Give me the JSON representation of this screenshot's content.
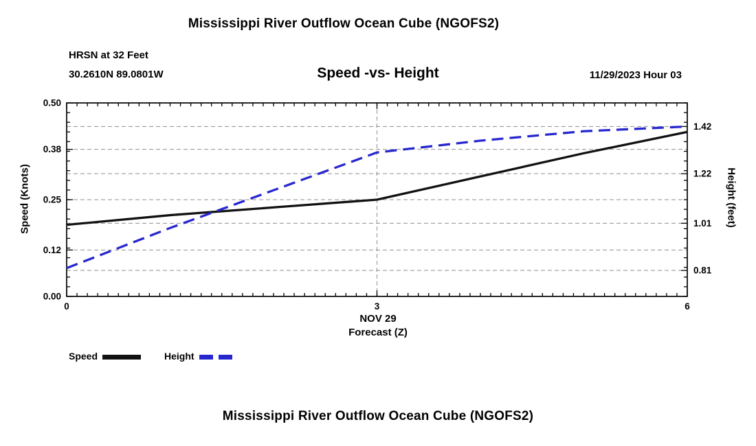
{
  "page": {
    "background": "#ffffff",
    "top_title": "Mississippi River Outflow Ocean Cube (NGOFS2)",
    "bottom_title": "Mississippi River Outflow Ocean Cube (NGOFS2)"
  },
  "header": {
    "station_line": "HRSN at 32 Feet",
    "location_line": "30.2610N  89.0801W",
    "plot_heading": "Speed -vs- Height",
    "forecast_time": "11/29/2023 Hour 03"
  },
  "chart_data": {
    "type": "line",
    "title": "Speed -vs- Height",
    "xlim": [
      0,
      6
    ],
    "x_ticks": {
      "values": [
        0,
        3,
        6
      ],
      "labels": [
        "0",
        "3",
        "6"
      ]
    },
    "x_axis_label_line1": "NOV 29",
    "x_axis_label_line2": "Forecast (Z)",
    "grid": {
      "style": "dashed",
      "color": "#8f8f8f",
      "vertical_lines_at_x": [
        3
      ]
    },
    "left_axis": {
      "label": "Speed (Knots)",
      "ylim": [
        0.0,
        0.5
      ],
      "ticks": [
        0.0,
        0.12,
        0.25,
        0.38,
        0.5
      ],
      "tick_labels": [
        "0.00",
        "0.12",
        "0.25",
        "0.38",
        "0.50"
      ]
    },
    "right_axis": {
      "label": "Height (feet)",
      "ylim": [
        0.7,
        1.52
      ],
      "ticks": [
        0.81,
        1.01,
        1.22,
        1.42
      ],
      "tick_labels": [
        "0.81",
        "1.01",
        "1.22",
        "1.42"
      ]
    },
    "series": [
      {
        "name": "Speed",
        "axis": "left",
        "color": "#111111",
        "style": "solid",
        "x": [
          0,
          1,
          2,
          3,
          4,
          5,
          6
        ],
        "values": [
          0.185,
          0.21,
          0.23,
          0.25,
          0.31,
          0.37,
          0.425
        ]
      },
      {
        "name": "Height",
        "axis": "right",
        "color": "#2727cf",
        "style": "dashed",
        "x": [
          0,
          1,
          2,
          3,
          4,
          5,
          6
        ],
        "values": [
          0.82,
          0.99,
          1.15,
          1.31,
          1.36,
          1.4,
          1.42
        ]
      }
    ],
    "legend": {
      "position": "below-left",
      "entries": [
        {
          "label": "Speed",
          "color": "#111111",
          "style": "solid"
        },
        {
          "label": "Height",
          "color": "#2727cf",
          "style": "dashed"
        }
      ]
    }
  }
}
